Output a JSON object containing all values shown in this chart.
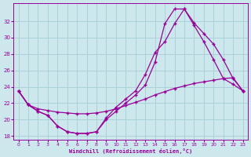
{
  "xlabel": "Windchill (Refroidissement éolien,°C)",
  "bg_color": "#cce8ed",
  "grid_color": "#a8cdd4",
  "line_color": "#990099",
  "ylim": [
    17.5,
    34.2
  ],
  "xlim": [
    -0.5,
    23.5
  ],
  "yticks": [
    18,
    20,
    22,
    24,
    26,
    28,
    30,
    32
  ],
  "xticks": [
    0,
    1,
    2,
    3,
    4,
    5,
    6,
    7,
    8,
    9,
    10,
    11,
    12,
    13,
    14,
    15,
    16,
    17,
    18,
    19,
    20,
    21,
    22,
    23
  ],
  "line1_x": [
    0,
    1,
    2,
    3,
    4,
    5,
    6,
    7,
    8,
    9,
    10,
    11,
    12,
    13,
    14,
    15,
    16,
    17,
    18,
    19,
    20,
    21,
    22,
    23
  ],
  "line1_y": [
    23.5,
    21.8,
    21.0,
    20.5,
    19.2,
    18.5,
    18.3,
    18.3,
    18.5,
    20.2,
    21.5,
    22.5,
    23.5,
    25.5,
    28.2,
    29.5,
    31.7,
    33.5,
    31.5,
    29.5,
    27.3,
    25.0,
    24.3,
    23.5
  ],
  "line2_x": [
    0,
    1,
    2,
    3,
    4,
    5,
    6,
    7,
    8,
    9,
    10,
    11,
    12,
    13,
    14,
    15,
    16,
    17,
    18,
    19,
    20,
    21,
    22,
    23
  ],
  "line2_y": [
    23.5,
    21.8,
    21.0,
    20.5,
    19.2,
    18.5,
    18.3,
    18.3,
    18.5,
    20.0,
    21.0,
    22.0,
    23.0,
    24.2,
    27.0,
    31.7,
    33.5,
    33.5,
    31.8,
    30.5,
    29.2,
    27.3,
    25.0,
    23.5
  ],
  "line3_x": [
    0,
    1,
    2,
    3,
    4,
    5,
    6,
    7,
    8,
    9,
    10,
    11,
    12,
    13,
    14,
    15,
    16,
    17,
    18,
    19,
    20,
    21,
    22,
    23
  ],
  "line3_y": [
    23.5,
    21.8,
    21.3,
    21.1,
    20.9,
    20.8,
    20.7,
    20.7,
    20.8,
    21.0,
    21.3,
    21.7,
    22.1,
    22.5,
    23.0,
    23.4,
    23.8,
    24.1,
    24.4,
    24.6,
    24.8,
    25.0,
    25.1,
    23.5
  ]
}
